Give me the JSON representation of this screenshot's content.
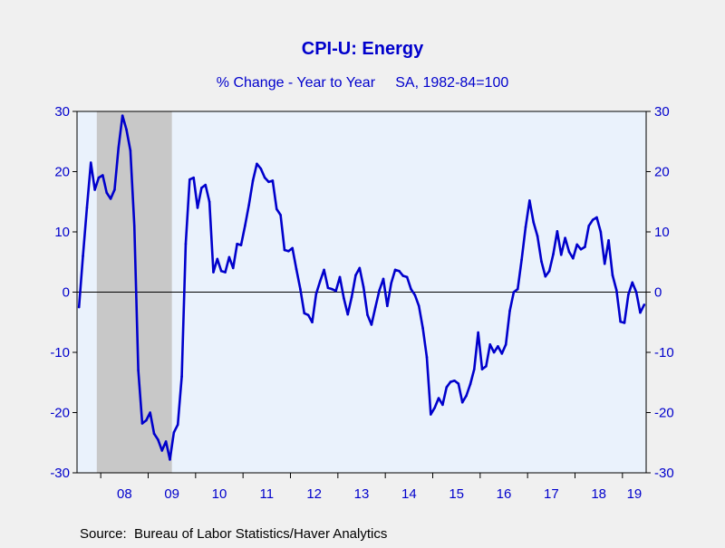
{
  "chart_data": {
    "type": "line",
    "title": "CPI-U: Energy",
    "subtitle": "% Change - Year to Year     SA, 1982-84=100",
    "source": "Source:  Bureau of Labor Statistics/Haver Analytics",
    "xlabel": "",
    "ylabel": "",
    "ylim": [
      -30,
      30
    ],
    "yticks": [
      30,
      20,
      10,
      0,
      -10,
      -20,
      -30
    ],
    "xlim": [
      "2007-07",
      "2019-06"
    ],
    "xticks": [
      "08",
      "09",
      "10",
      "11",
      "12",
      "13",
      "14",
      "15",
      "16",
      "17",
      "18",
      "19"
    ],
    "recession": {
      "start": "2007-12",
      "end": "2009-06"
    },
    "zero_line": true,
    "colors": {
      "series": "#0000cc",
      "text": "#0000cc",
      "plot_bg": "#eaf2fc",
      "recession": "#c8c8c8",
      "page_bg": "#f0f0f0"
    },
    "series": [
      {
        "x": [
          "2007-07",
          "2007-08",
          "2007-09",
          "2007-10",
          "2007-11",
          "2007-12",
          "2008-01",
          "2008-02",
          "2008-03",
          "2008-04",
          "2008-05",
          "2008-06",
          "2008-07",
          "2008-08",
          "2008-09",
          "2008-10",
          "2008-11",
          "2008-12",
          "2009-01",
          "2009-02",
          "2009-03",
          "2009-04",
          "2009-05",
          "2009-06",
          "2009-07",
          "2009-08",
          "2009-09",
          "2009-10",
          "2009-11",
          "2009-12",
          "2010-01",
          "2010-02",
          "2010-03",
          "2010-04",
          "2010-05",
          "2010-06",
          "2010-07",
          "2010-08",
          "2010-09",
          "2010-10",
          "2010-11",
          "2010-12",
          "2011-01",
          "2011-02",
          "2011-03",
          "2011-04",
          "2011-05",
          "2011-06",
          "2011-07",
          "2011-08",
          "2011-09",
          "2011-10",
          "2011-11",
          "2011-12",
          "2012-01",
          "2012-02",
          "2012-03",
          "2012-04",
          "2012-05",
          "2012-06",
          "2012-07",
          "2012-08",
          "2012-09",
          "2012-10",
          "2012-11",
          "2012-12",
          "2013-01",
          "2013-02",
          "2013-03",
          "2013-04",
          "2013-05",
          "2013-06",
          "2013-07",
          "2013-08",
          "2013-09",
          "2013-10",
          "2013-11",
          "2013-12",
          "2014-01",
          "2014-02",
          "2014-03",
          "2014-04",
          "2014-05",
          "2014-06",
          "2014-07",
          "2014-08",
          "2014-09",
          "2014-10",
          "2014-11",
          "2014-12",
          "2015-01",
          "2015-02",
          "2015-03",
          "2015-04",
          "2015-05",
          "2015-06",
          "2015-07",
          "2015-08",
          "2015-09",
          "2015-10",
          "2015-11",
          "2015-12",
          "2016-01",
          "2016-02",
          "2016-03",
          "2016-04",
          "2016-05",
          "2016-06",
          "2016-07",
          "2016-08",
          "2016-09",
          "2016-10",
          "2016-11",
          "2016-12",
          "2017-01",
          "2017-02",
          "2017-03",
          "2017-04",
          "2017-05",
          "2017-06",
          "2017-07",
          "2017-08",
          "2017-09",
          "2017-10",
          "2017-11",
          "2017-12",
          "2018-01",
          "2018-02",
          "2018-03",
          "2018-04",
          "2018-05",
          "2018-06",
          "2018-07",
          "2018-08",
          "2018-09",
          "2018-10",
          "2018-11",
          "2018-12",
          "2019-01",
          "2019-02",
          "2019-03",
          "2019-04",
          "2019-05",
          "2019-06"
        ],
        "values": [
          -2.5,
          6.0,
          14.0,
          21.5,
          17.0,
          19.0,
          19.4,
          16.5,
          15.5,
          17.0,
          24.0,
          29.3,
          27.0,
          23.5,
          11.0,
          -13.0,
          -21.8,
          -21.3,
          -20.0,
          -23.5,
          -24.5,
          -26.3,
          -24.8,
          -27.8,
          -23.3,
          -22.0,
          -14.0,
          8.0,
          18.7,
          19.0,
          14.0,
          17.3,
          17.8,
          15.0,
          3.3,
          5.5,
          3.5,
          3.3,
          5.8,
          4.0,
          8.0,
          7.8,
          11.0,
          14.5,
          18.5,
          21.3,
          20.5,
          19.0,
          18.3,
          18.5,
          13.8,
          12.8,
          7.0,
          6.8,
          7.3,
          3.8,
          0.5,
          -3.5,
          -3.8,
          -5.0,
          -0.3,
          1.8,
          3.7,
          0.7,
          0.5,
          0.2,
          2.5,
          -1.0,
          -3.7,
          -0.8,
          2.8,
          4.0,
          0.8,
          -3.8,
          -5.4,
          -2.5,
          0.3,
          2.2,
          -2.3,
          1.5,
          3.7,
          3.5,
          2.7,
          2.5,
          0.5,
          -0.5,
          -2.3,
          -6.0,
          -10.8,
          -20.3,
          -19.2,
          -17.6,
          -18.7,
          -15.8,
          -14.9,
          -14.7,
          -15.2,
          -18.3,
          -17.2,
          -15.3,
          -12.8,
          -6.7,
          -12.8,
          -12.3,
          -8.7,
          -10.0,
          -9.0,
          -10.2,
          -8.7,
          -3.1,
          0.0,
          0.5,
          5.4,
          10.8,
          15.2,
          11.6,
          9.3,
          5.1,
          2.6,
          3.5,
          6.3,
          10.1,
          6.2,
          9.0,
          6.7,
          5.6,
          7.9,
          7.1,
          7.5,
          11.0,
          12.0,
          12.4,
          10.0,
          4.7,
          8.6,
          2.8,
          0.3,
          -4.9,
          -5.1,
          -0.4,
          1.6,
          0.0,
          -3.4,
          -2.1
        ]
      }
    ]
  }
}
